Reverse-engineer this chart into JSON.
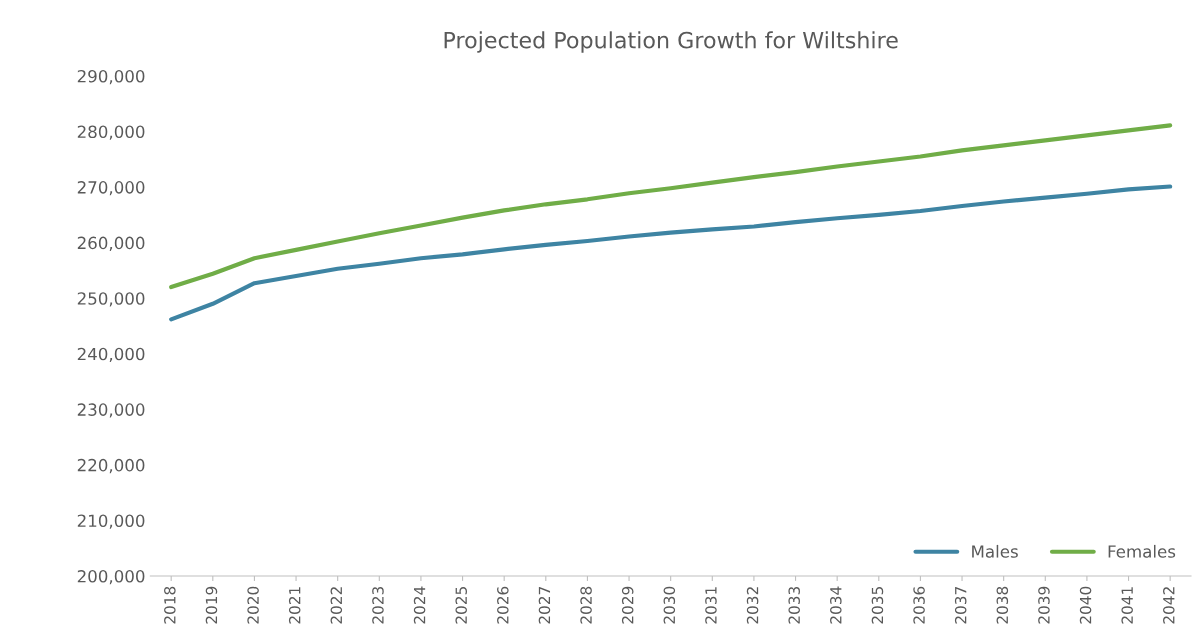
{
  "chart_data": {
    "type": "line",
    "title": "Projected Population Growth for Wiltshire",
    "categories": [
      "2018",
      "2019",
      "2020",
      "2021",
      "2022",
      "2023",
      "2024",
      "2025",
      "2026",
      "2027",
      "2028",
      "2029",
      "2030",
      "2031",
      "2032",
      "2033",
      "2034",
      "2035",
      "2036",
      "2037",
      "2038",
      "2039",
      "2040",
      "2041",
      "2042"
    ],
    "series": [
      {
        "name": "Males",
        "color": "#3e84a3",
        "values": [
          246200,
          249000,
          252700,
          254000,
          255300,
          256200,
          257200,
          257900,
          258800,
          259600,
          260300,
          261100,
          261800,
          262400,
          262900,
          263700,
          264400,
          265000,
          265700,
          266600,
          267400,
          268100,
          268800,
          269600,
          270100
        ]
      },
      {
        "name": "Females",
        "color": "#70ad47",
        "values": [
          252000,
          254400,
          257200,
          258700,
          260200,
          261700,
          263100,
          264500,
          265800,
          266900,
          267800,
          268900,
          269800,
          270800,
          271800,
          272700,
          273700,
          274600,
          275500,
          276600,
          277500,
          278400,
          279300,
          280200,
          281100
        ]
      }
    ],
    "ylim": [
      200000,
      290000
    ],
    "yticks": [
      {
        "value": 200000,
        "label": "200,000"
      },
      {
        "value": 210000,
        "label": "210,000"
      },
      {
        "value": 220000,
        "label": "220,000"
      },
      {
        "value": 230000,
        "label": "230,000"
      },
      {
        "value": 240000,
        "label": "240,000"
      },
      {
        "value": 250000,
        "label": "250,000"
      },
      {
        "value": 260000,
        "label": "260,000"
      },
      {
        "value": 270000,
        "label": "270,000"
      },
      {
        "value": 280000,
        "label": "280,000"
      },
      {
        "value": 290000,
        "label": "290,000"
      }
    ],
    "grid": false,
    "legend": "bottom right",
    "marker": "none",
    "line_style": "solid"
  }
}
